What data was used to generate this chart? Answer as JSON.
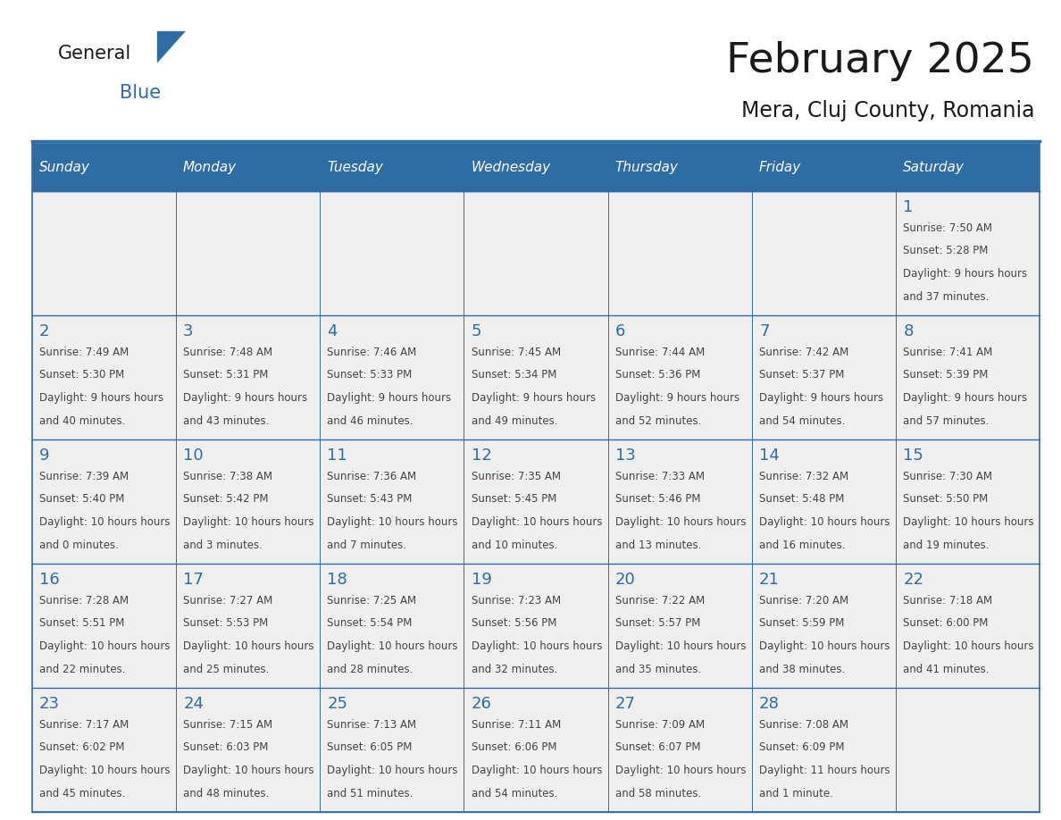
{
  "title": "February 2025",
  "subtitle": "Mera, Cluj County, Romania",
  "days_of_week": [
    "Sunday",
    "Monday",
    "Tuesday",
    "Wednesday",
    "Thursday",
    "Friday",
    "Saturday"
  ],
  "header_bg": "#2E6DA4",
  "header_text": "#FFFFFF",
  "cell_bg_light": "#EFEFEF",
  "border_color": "#2E6DA4",
  "day_num_color": "#2E6DA4",
  "text_color": "#444444",
  "logo_general_color": "#1a1a1a",
  "logo_blue_color": "#2E6DA4",
  "calendar_data": [
    [
      {
        "day": "",
        "sunrise": "",
        "sunset": "",
        "daylight": ""
      },
      {
        "day": "",
        "sunrise": "",
        "sunset": "",
        "daylight": ""
      },
      {
        "day": "",
        "sunrise": "",
        "sunset": "",
        "daylight": ""
      },
      {
        "day": "",
        "sunrise": "",
        "sunset": "",
        "daylight": ""
      },
      {
        "day": "",
        "sunrise": "",
        "sunset": "",
        "daylight": ""
      },
      {
        "day": "",
        "sunrise": "",
        "sunset": "",
        "daylight": ""
      },
      {
        "day": "1",
        "sunrise": "7:50 AM",
        "sunset": "5:28 PM",
        "daylight": "9 hours and 37 minutes."
      }
    ],
    [
      {
        "day": "2",
        "sunrise": "7:49 AM",
        "sunset": "5:30 PM",
        "daylight": "9 hours and 40 minutes."
      },
      {
        "day": "3",
        "sunrise": "7:48 AM",
        "sunset": "5:31 PM",
        "daylight": "9 hours and 43 minutes."
      },
      {
        "day": "4",
        "sunrise": "7:46 AM",
        "sunset": "5:33 PM",
        "daylight": "9 hours and 46 minutes."
      },
      {
        "day": "5",
        "sunrise": "7:45 AM",
        "sunset": "5:34 PM",
        "daylight": "9 hours and 49 minutes."
      },
      {
        "day": "6",
        "sunrise": "7:44 AM",
        "sunset": "5:36 PM",
        "daylight": "9 hours and 52 minutes."
      },
      {
        "day": "7",
        "sunrise": "7:42 AM",
        "sunset": "5:37 PM",
        "daylight": "9 hours and 54 minutes."
      },
      {
        "day": "8",
        "sunrise": "7:41 AM",
        "sunset": "5:39 PM",
        "daylight": "9 hours and 57 minutes."
      }
    ],
    [
      {
        "day": "9",
        "sunrise": "7:39 AM",
        "sunset": "5:40 PM",
        "daylight": "10 hours and 0 minutes."
      },
      {
        "day": "10",
        "sunrise": "7:38 AM",
        "sunset": "5:42 PM",
        "daylight": "10 hours and 3 minutes."
      },
      {
        "day": "11",
        "sunrise": "7:36 AM",
        "sunset": "5:43 PM",
        "daylight": "10 hours and 7 minutes."
      },
      {
        "day": "12",
        "sunrise": "7:35 AM",
        "sunset": "5:45 PM",
        "daylight": "10 hours and 10 minutes."
      },
      {
        "day": "13",
        "sunrise": "7:33 AM",
        "sunset": "5:46 PM",
        "daylight": "10 hours and 13 minutes."
      },
      {
        "day": "14",
        "sunrise": "7:32 AM",
        "sunset": "5:48 PM",
        "daylight": "10 hours and 16 minutes."
      },
      {
        "day": "15",
        "sunrise": "7:30 AM",
        "sunset": "5:50 PM",
        "daylight": "10 hours and 19 minutes."
      }
    ],
    [
      {
        "day": "16",
        "sunrise": "7:28 AM",
        "sunset": "5:51 PM",
        "daylight": "10 hours and 22 minutes."
      },
      {
        "day": "17",
        "sunrise": "7:27 AM",
        "sunset": "5:53 PM",
        "daylight": "10 hours and 25 minutes."
      },
      {
        "day": "18",
        "sunrise": "7:25 AM",
        "sunset": "5:54 PM",
        "daylight": "10 hours and 28 minutes."
      },
      {
        "day": "19",
        "sunrise": "7:23 AM",
        "sunset": "5:56 PM",
        "daylight": "10 hours and 32 minutes."
      },
      {
        "day": "20",
        "sunrise": "7:22 AM",
        "sunset": "5:57 PM",
        "daylight": "10 hours and 35 minutes."
      },
      {
        "day": "21",
        "sunrise": "7:20 AM",
        "sunset": "5:59 PM",
        "daylight": "10 hours and 38 minutes."
      },
      {
        "day": "22",
        "sunrise": "7:18 AM",
        "sunset": "6:00 PM",
        "daylight": "10 hours and 41 minutes."
      }
    ],
    [
      {
        "day": "23",
        "sunrise": "7:17 AM",
        "sunset": "6:02 PM",
        "daylight": "10 hours and 45 minutes."
      },
      {
        "day": "24",
        "sunrise": "7:15 AM",
        "sunset": "6:03 PM",
        "daylight": "10 hours and 48 minutes."
      },
      {
        "day": "25",
        "sunrise": "7:13 AM",
        "sunset": "6:05 PM",
        "daylight": "10 hours and 51 minutes."
      },
      {
        "day": "26",
        "sunrise": "7:11 AM",
        "sunset": "6:06 PM",
        "daylight": "10 hours and 54 minutes."
      },
      {
        "day": "27",
        "sunrise": "7:09 AM",
        "sunset": "6:07 PM",
        "daylight": "10 hours and 58 minutes."
      },
      {
        "day": "28",
        "sunrise": "7:08 AM",
        "sunset": "6:09 PM",
        "daylight": "11 hours and 1 minute."
      },
      {
        "day": "",
        "sunrise": "",
        "sunset": "",
        "daylight": ""
      }
    ]
  ]
}
